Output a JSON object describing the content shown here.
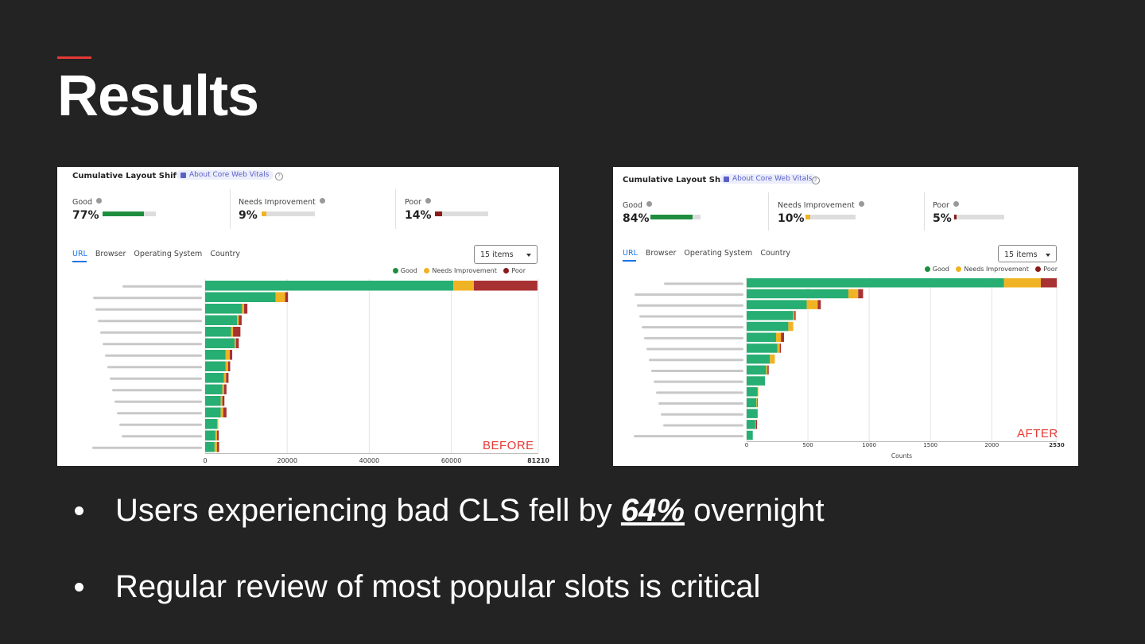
{
  "slide": {
    "title": "Results",
    "bullets": [
      {
        "before": "Users experiencing bad CLS fell by ",
        "emphasis": "64%",
        "after": " overnight"
      },
      {
        "text": "Regular review of most popular slots is critical"
      }
    ]
  },
  "colors": {
    "good": "#27ae72",
    "needs": "#f0b323",
    "poor": "#a83232",
    "accent": "#e53935"
  },
  "icons": [
    "book-icon",
    "help-icon",
    "info-icon",
    "chevron-down-icon"
  ],
  "panels": [
    {
      "title": "Cumulative Layout Shift",
      "about": "About Core Web Vitals",
      "metrics": [
        {
          "label": "Good",
          "value": "77%",
          "fraction": 0.77,
          "color": "#1e8e3e"
        },
        {
          "label": "Needs Improvement",
          "value": "9%",
          "fraction": 0.09,
          "color": "#f0b323"
        },
        {
          "label": "Poor",
          "value": "14%",
          "fraction": 0.14,
          "color": "#8b1a1a"
        }
      ],
      "tabs": [
        "URL",
        "Browser",
        "Operating System",
        "Country"
      ],
      "select": "15 items",
      "legend": [
        "Good",
        "Needs Improvement",
        "Poor"
      ],
      "stamp": "BEFORE"
    },
    {
      "title": "Cumulative Layout Shift",
      "about": "About Core Web Vitals",
      "metrics": [
        {
          "label": "Good",
          "value": "84%",
          "fraction": 0.84,
          "color": "#1e8e3e"
        },
        {
          "label": "Needs Improvement",
          "value": "10%",
          "fraction": 0.1,
          "color": "#f0b323"
        },
        {
          "label": "Poor",
          "value": "5%",
          "fraction": 0.05,
          "color": "#8b1a1a"
        }
      ],
      "tabs": [
        "URL",
        "Browser",
        "Operating System",
        "Country"
      ],
      "select": "15 items",
      "legend": [
        "Good",
        "Needs Improvement",
        "Poor"
      ],
      "stamp": "AFTER"
    }
  ],
  "chart_data": [
    {
      "type": "bar",
      "orientation": "horizontal",
      "stacked": true,
      "categories": [
        "",
        "",
        "",
        "",
        "",
        "",
        "",
        "",
        "",
        "",
        "",
        "",
        "",
        "",
        ""
      ],
      "series": [
        {
          "name": "Good",
          "values": [
            60500,
            17200,
            9000,
            7800,
            6300,
            7200,
            5000,
            5000,
            4600,
            4200,
            3800,
            3800,
            2900,
            2500,
            2300
          ]
        },
        {
          "name": "Needs Improvement",
          "values": [
            5000,
            2300,
            500,
            400,
            500,
            300,
            1000,
            600,
            500,
            400,
            400,
            600,
            300,
            400,
            600
          ]
        },
        {
          "name": "Poor",
          "values": [
            15500,
            700,
            800,
            700,
            1800,
            700,
            600,
            500,
            600,
            600,
            500,
            800,
            0,
            400,
            500
          ]
        }
      ],
      "xticks": [
        "0",
        "20000",
        "40000",
        "60000",
        "81210"
      ],
      "xlim": [
        0,
        81210
      ],
      "grid": true,
      "legend": "top-right"
    },
    {
      "type": "bar",
      "orientation": "horizontal",
      "stacked": true,
      "categories": [
        "",
        "",
        "",
        "",
        "",
        "",
        "",
        "",
        "",
        "",
        "",
        "",
        "",
        "",
        ""
      ],
      "series": [
        {
          "name": "Good",
          "values": [
            2100,
            830,
            490,
            380,
            340,
            240,
            250,
            190,
            160,
            150,
            90,
            80,
            90,
            70,
            50
          ]
        },
        {
          "name": "Needs Improvement",
          "values": [
            300,
            80,
            90,
            10,
            40,
            40,
            20,
            40,
            10,
            0,
            5,
            5,
            0,
            5,
            0
          ]
        },
        {
          "name": "Poor",
          "values": [
            130,
            40,
            25,
            10,
            0,
            25,
            10,
            0,
            10,
            0,
            0,
            5,
            0,
            10,
            0
          ]
        }
      ],
      "xticks": [
        "0",
        "500",
        "1000",
        "1500",
        "2000",
        "2530"
      ],
      "xlim": [
        0,
        2530
      ],
      "xlabel": "Counts",
      "grid": true,
      "legend": "top-right"
    }
  ]
}
